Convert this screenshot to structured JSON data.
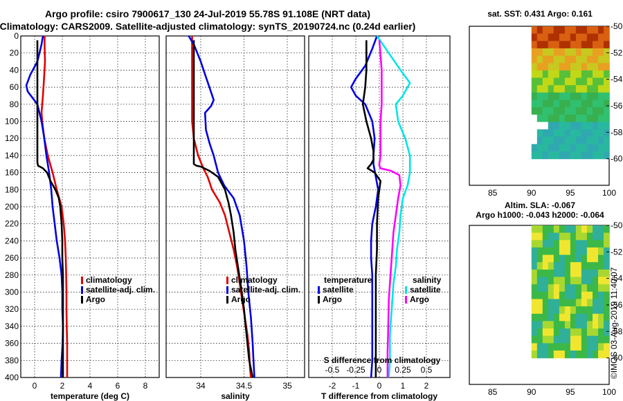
{
  "titles": {
    "line1": "Argo profile: csiro 7900617_130 24-Jul-2019 55.78S 91.108E (NRT data)",
    "line2": "Climatology: CARS2009. Satellite-adjusted climatology: synTS_20190724.nc (0.24d earlier)"
  },
  "timestamp": "©IMOS 03-Aug-2019 11:40:07",
  "colors": {
    "climatology": "#e00000",
    "satellite": "#0000e0",
    "argo": "#000000",
    "argo_sal": "#ff00ff",
    "sat_sal": "#00e5e5"
  },
  "depth_axis": {
    "min": 0,
    "max": 400,
    "ticks": [
      0,
      20,
      40,
      60,
      80,
      100,
      120,
      140,
      160,
      180,
      200,
      220,
      240,
      260,
      280,
      300,
      320,
      340,
      360,
      380,
      400
    ]
  },
  "chart_data": [
    {
      "type": "line",
      "id": "temperature",
      "xlabel": "temperature (deg C)",
      "xlim": [
        -1,
        9
      ],
      "xticks": [
        0,
        2,
        4,
        6,
        8
      ],
      "xticklabels": [
        "0",
        "2",
        "4",
        "6",
        "8"
      ],
      "legend": [
        "climatology",
        "satellite-adj. clim.",
        "Argo"
      ],
      "series": [
        {
          "name": "climatology",
          "color": "#e00000",
          "x": [
            0.72,
            0.72,
            0.75,
            0.68,
            0.6,
            0.55,
            0.5,
            0.55,
            0.7,
            0.95,
            1.3,
            1.6,
            1.95,
            2.1,
            2.2,
            2.25,
            2.28,
            2.3,
            2.3,
            2.32,
            2.35,
            2.35,
            2.35
          ],
          "y": [
            0,
            10,
            30,
            50,
            70,
            80,
            90,
            100,
            120,
            140,
            160,
            180,
            200,
            220,
            240,
            260,
            280,
            300,
            320,
            340,
            360,
            380,
            400
          ]
        },
        {
          "name": "satellite-adj. clim.",
          "color": "#0000e0",
          "x": [
            0.6,
            0.5,
            0.2,
            -0.3,
            -0.6,
            -0.5,
            0.2,
            0.5,
            0.7,
            0.85,
            1.05,
            1.2,
            1.3,
            1.45,
            1.6,
            1.8,
            1.95,
            2.0,
            2.0,
            2.05,
            2.02,
            1.95,
            1.9
          ],
          "y": [
            0,
            10,
            30,
            45,
            58,
            65,
            80,
            100,
            120,
            140,
            160,
            180,
            200,
            220,
            240,
            260,
            280,
            300,
            320,
            340,
            360,
            380,
            400
          ]
        },
        {
          "name": "Argo",
          "color": "#000000",
          "x": [
            0.2,
            0.2,
            0.2,
            0.2,
            0.2,
            0.2,
            0.25,
            0.6,
            0.9,
            1.15,
            1.5,
            1.75,
            1.85,
            1.95,
            2.0,
            2.0,
            2.05,
            2.05,
            2.05,
            2.05,
            2.05,
            2.05
          ],
          "y": [
            5,
            40,
            80,
            120,
            145,
            148,
            152,
            155,
            160,
            170,
            180,
            190,
            200,
            220,
            240,
            260,
            280,
            300,
            320,
            340,
            360,
            400
          ]
        }
      ]
    },
    {
      "type": "line",
      "id": "salinity",
      "xlabel": "salinity",
      "xlim": [
        33.6,
        35.2
      ],
      "xticks": [
        34,
        34.5,
        35
      ],
      "xticklabels": [
        "34",
        "34.5",
        "35"
      ],
      "legend": [
        "climatology",
        "satellite-adj. clim.",
        "Argo"
      ],
      "series": [
        {
          "name": "climatology",
          "color": "#e00000",
          "x": [
            33.9,
            33.9,
            33.9,
            33.9,
            33.9,
            33.9,
            33.92,
            33.97,
            34.03,
            34.08,
            34.13,
            34.22,
            34.28,
            34.33,
            34.38,
            34.42,
            34.45,
            34.48,
            34.51,
            34.54,
            34.56,
            34.57,
            34.58
          ],
          "y": [
            0,
            20,
            40,
            60,
            80,
            100,
            120,
            140,
            155,
            165,
            180,
            195,
            210,
            230,
            250,
            270,
            290,
            310,
            330,
            350,
            370,
            390,
            400
          ]
        },
        {
          "name": "satellite-adj. clim.",
          "color": "#0000e0",
          "x": [
            33.86,
            33.92,
            34.0,
            34.05,
            34.1,
            34.15,
            34.12,
            34.05,
            34.06,
            34.1,
            34.15,
            34.2,
            34.27,
            34.38,
            34.45,
            34.5,
            34.53,
            34.55,
            34.58,
            34.6,
            34.61,
            34.62
          ],
          "y": [
            0,
            10,
            30,
            45,
            60,
            75,
            82,
            90,
            110,
            125,
            140,
            160,
            175,
            190,
            210,
            240,
            270,
            300,
            330,
            360,
            380,
            400
          ]
        },
        {
          "name": "Argo",
          "color": "#000000",
          "x": [
            33.92,
            33.92,
            33.92,
            33.92,
            33.92,
            33.92,
            33.95,
            34.0,
            34.1,
            34.2,
            34.28,
            34.32,
            34.35,
            34.38,
            34.4,
            34.43,
            34.46,
            34.5,
            34.53,
            34.56,
            34.6
          ],
          "y": [
            5,
            40,
            80,
            120,
            145,
            150,
            152,
            153,
            158,
            165,
            180,
            195,
            210,
            230,
            250,
            270,
            290,
            320,
            350,
            380,
            400
          ]
        }
      ]
    },
    {
      "type": "line",
      "id": "difference",
      "xlabel": "T difference from climatology",
      "x2label": "S difference from climatology",
      "xlim": [
        -3,
        3
      ],
      "xticks": [
        -2,
        -1,
        0,
        1,
        2
      ],
      "xticklabels": [
        "-2",
        "-1",
        "0",
        "1",
        "2"
      ],
      "x2ticks": [
        -2,
        -1,
        0,
        1,
        2
      ],
      "x2ticklabels": [
        "-0.5",
        "-0.25",
        "0",
        "0.25",
        "0.5"
      ],
      "legend_t": [
        "temperature",
        "satellite",
        "Argo"
      ],
      "legend_s": [
        "salinity",
        "satellite",
        "Argo"
      ],
      "series": [
        {
          "name": "T satellite",
          "color": "#0000e0",
          "x": [
            -0.1,
            -0.3,
            -0.6,
            -1.0,
            -1.2,
            -1.0,
            -0.6,
            -0.3,
            -0.2,
            -0.25,
            -0.25,
            -0.15,
            -0.05,
            -0.15,
            -0.3,
            -0.35,
            -0.35,
            -0.3,
            -0.3,
            -0.3,
            -0.3,
            -0.3,
            -0.35
          ],
          "y": [
            0,
            15,
            35,
            50,
            60,
            70,
            80,
            100,
            120,
            140,
            150,
            165,
            180,
            200,
            220,
            240,
            260,
            280,
            300,
            320,
            350,
            380,
            400
          ]
        },
        {
          "name": "T Argo",
          "color": "#000000",
          "x": [
            -0.55,
            -0.55,
            -0.6,
            -0.7,
            -0.55,
            -0.35,
            -0.25,
            -0.25,
            -0.35,
            -0.5,
            -0.2,
            0.05,
            -0.05,
            -0.1,
            -0.1,
            -0.15,
            -0.15,
            -0.15,
            -0.15,
            -0.15,
            -0.15
          ],
          "y": [
            5,
            40,
            60,
            80,
            100,
            120,
            135,
            145,
            150,
            155,
            160,
            170,
            190,
            220,
            250,
            280,
            310,
            340,
            370,
            390,
            400
          ]
        },
        {
          "name": "S satellite",
          "color": "#00e5e5",
          "x": [
            -0.1,
            0.4,
            0.9,
            1.3,
            1.0,
            0.7,
            0.8,
            1.1,
            1.3,
            1.3,
            1.2,
            1.0,
            0.9,
            0.85,
            0.75,
            0.7,
            0.6,
            0.55,
            0.5,
            0.45,
            0.45,
            0.4
          ],
          "y": [
            0,
            20,
            40,
            55,
            70,
            80,
            100,
            120,
            140,
            160,
            175,
            190,
            210,
            230,
            250,
            270,
            290,
            310,
            330,
            350,
            380,
            400
          ]
        },
        {
          "name": "S Argo",
          "color": "#ff00ff",
          "x": [
            0,
            0.1,
            0.1,
            0.05,
            0.05,
            0.05,
            0.0,
            0.0,
            0.05,
            0.5,
            0.85,
            0.9,
            0.8,
            0.7,
            0.6,
            0.55,
            0.5,
            0.45,
            0.4,
            0.38,
            0.35,
            0.35
          ],
          "y": [
            5,
            40,
            80,
            100,
            120,
            140,
            150,
            152,
            155,
            158,
            163,
            175,
            190,
            210,
            230,
            250,
            270,
            290,
            310,
            340,
            370,
            400
          ]
        }
      ]
    },
    {
      "type": "heatmap",
      "id": "sst_map",
      "title": "sat. SST: 0.431 Argo: 0.161",
      "xlim": [
        82,
        100
      ],
      "ylim": [
        -62,
        -50
      ],
      "xticks": [
        85,
        90,
        95,
        100
      ],
      "yticks": [
        -50,
        -52,
        -54,
        -56,
        -58,
        -60
      ],
      "yticklabels": [
        "-50",
        "-52",
        "-54",
        "-56",
        "-58",
        "-60"
      ],
      "data_extent": {
        "lon": [
          90,
          100
        ],
        "lat": [
          -60,
          -50
        ]
      }
    },
    {
      "type": "heatmap",
      "id": "sla_map",
      "title": "Altim. SLA: -0.067",
      "subtitle": "Argo h1000: -0.043 h2000: -0.064",
      "xlim": [
        82,
        100
      ],
      "ylim": [
        -62,
        -50
      ],
      "xticks": [
        85,
        90,
        95,
        100
      ],
      "yticks": [
        -50,
        -52,
        -54,
        -56,
        -58,
        -60
      ],
      "yticklabels": [
        "-50",
        "-52",
        "-54",
        "-56",
        "-58",
        "-60"
      ],
      "data_extent": {
        "lon": [
          90,
          100
        ],
        "lat": [
          -60,
          -50
        ]
      }
    }
  ]
}
